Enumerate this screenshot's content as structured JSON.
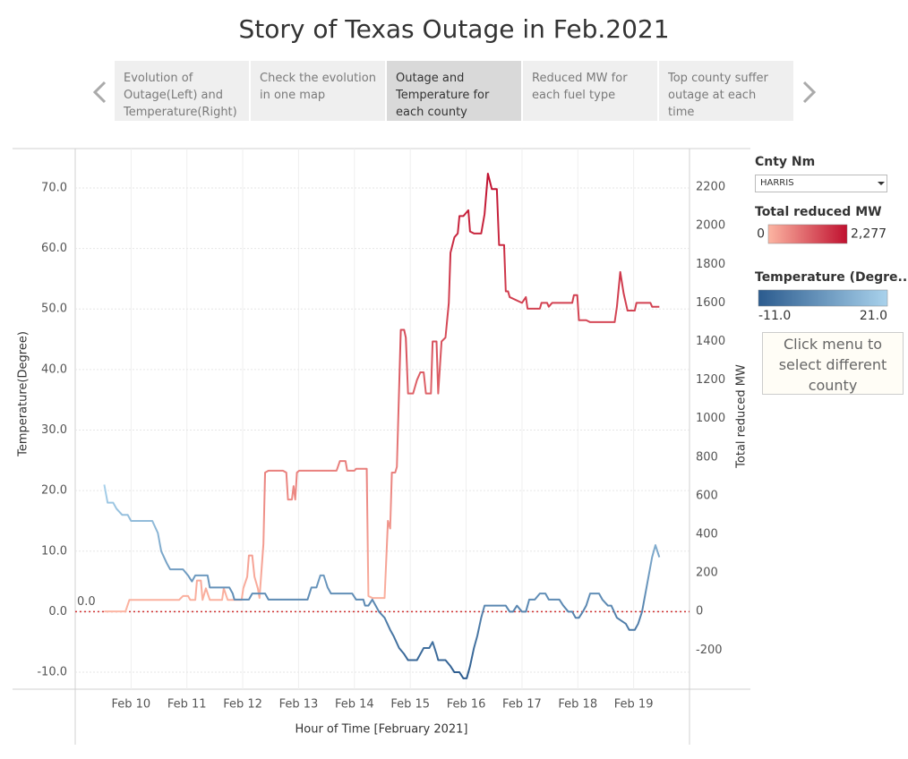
{
  "title": "Story of Texas Outage in Feb.2021",
  "story_points": [
    "Evolution of Outage(Left) and Temperature(Right)",
    "Check the evolution in one map",
    "Outage and Temperature for each county",
    "Reduced MW for each fuel type",
    "Top  county suffer outage at each time"
  ],
  "active_story_point": 2,
  "filter": {
    "label": "Cnty Nm",
    "value": "HARRIS"
  },
  "note": "Click menu to select different county",
  "chart_data": {
    "type": "line",
    "x_label": "Hour of Time [February 2021]",
    "y_label": "Temperature(Degree)",
    "y2_label": "Total reduced MW",
    "xlim": [
      9.0,
      20.0
    ],
    "xticks": [
      {
        "value": 10,
        "label": "Feb 10"
      },
      {
        "value": 11,
        "label": "Feb 11"
      },
      {
        "value": 12,
        "label": "Feb 12"
      },
      {
        "value": 13,
        "label": "Feb 13"
      },
      {
        "value": 14,
        "label": "Feb 14"
      },
      {
        "value": 15,
        "label": "Feb 15"
      },
      {
        "value": 16,
        "label": "Feb 16"
      },
      {
        "value": 17,
        "label": "Feb 17"
      },
      {
        "value": 18,
        "label": "Feb 18"
      },
      {
        "value": 19,
        "label": "Feb 19"
      }
    ],
    "ylim": [
      -12.8,
      76.5
    ],
    "yticks": [
      {
        "value": -10,
        "label": "-10.0"
      },
      {
        "value": 0,
        "label": "0.0"
      },
      {
        "value": 10,
        "label": "10.0"
      },
      {
        "value": 20,
        "label": "20.0"
      },
      {
        "value": 30,
        "label": "30.0"
      },
      {
        "value": 40,
        "label": "40.0"
      },
      {
        "value": 50,
        "label": "50.0"
      },
      {
        "value": 60,
        "label": "60.0"
      },
      {
        "value": 70,
        "label": "70.0"
      }
    ],
    "y2lim": [
      -403,
      2400
    ],
    "y2ticks": [
      -200,
      0,
      200,
      400,
      600,
      800,
      1000,
      1200,
      1400,
      1600,
      1800,
      2000,
      2200
    ],
    "grid": true,
    "reference_line": {
      "value": 0,
      "label": "0.0",
      "color": "#d03030"
    },
    "series": [
      {
        "name": "Total reduced MW",
        "axis": "y2",
        "color_scale": {
          "colors": [
            "#fcb5a2",
            "#c0102f"
          ],
          "ticks": [
            {
              "value": 0,
              "label": "0"
            },
            {
              "value": 2277,
              "label": "2,277"
            }
          ]
        },
        "x": [
          9.52,
          9.9,
          9.97,
          10.03,
          10.86,
          10.93,
          11.02,
          11.06,
          11.15,
          11.18,
          11.25,
          11.28,
          11.34,
          11.41,
          11.63,
          11.66,
          11.73,
          11.98,
          12.01,
          12.08,
          12.11,
          12.17,
          12.21,
          12.27,
          12.3,
          12.37,
          12.4,
          12.46,
          12.72,
          12.78,
          12.81,
          12.88,
          12.91,
          12.94,
          12.97,
          13.01,
          13.68,
          13.74,
          13.84,
          13.87,
          14.0,
          14.03,
          14.22,
          14.25,
          14.32,
          14.54,
          14.6,
          14.64,
          14.67,
          14.73,
          14.76,
          14.83,
          14.89,
          14.92,
          14.96,
          15.05,
          15.12,
          15.18,
          15.24,
          15.28,
          15.37,
          15.4,
          15.47,
          15.5,
          15.56,
          15.63,
          15.69,
          15.72,
          15.79,
          15.85,
          15.88,
          15.95,
          15.98,
          16.04,
          16.07,
          16.14,
          16.27,
          16.33,
          16.39,
          16.46,
          16.55,
          16.59,
          16.68,
          16.71,
          16.75,
          16.78,
          17.0,
          17.07,
          17.1,
          17.32,
          17.35,
          17.45,
          17.48,
          17.54,
          17.9,
          17.93,
          17.99,
          18.02,
          18.15,
          18.22,
          18.66,
          18.7,
          18.76,
          18.82,
          18.89,
          19.02,
          19.05,
          19.3,
          19.33,
          19.46
        ],
        "values": [
          0,
          0,
          60,
          60,
          60,
          80,
          80,
          60,
          60,
          160,
          160,
          60,
          120,
          60,
          60,
          120,
          60,
          60,
          120,
          180,
          290,
          290,
          180,
          120,
          70,
          350,
          720,
          730,
          730,
          720,
          580,
          580,
          650,
          580,
          720,
          730,
          730,
          780,
          780,
          730,
          730,
          740,
          740,
          80,
          70,
          70,
          470,
          430,
          720,
          720,
          750,
          1460,
          1460,
          1420,
          1130,
          1130,
          1200,
          1240,
          1240,
          1130,
          1130,
          1400,
          1400,
          1130,
          1400,
          1420,
          1600,
          1860,
          1940,
          1960,
          2050,
          2050,
          2060,
          2080,
          1970,
          1960,
          1960,
          2060,
          2270,
          2190,
          2190,
          1900,
          1900,
          1660,
          1660,
          1630,
          1600,
          1630,
          1570,
          1570,
          1600,
          1600,
          1580,
          1600,
          1600,
          1640,
          1640,
          1510,
          1510,
          1500,
          1500,
          1580,
          1760,
          1650,
          1560,
          1560,
          1600,
          1600,
          1580,
          1580
        ]
      },
      {
        "name": "Temperature (Degre..",
        "axis": "y",
        "color_scale": {
          "colors": [
            "#2b5b8e",
            "#a9d2ec"
          ],
          "ticks": [
            {
              "value": -11,
              "label": "-11.0"
            },
            {
              "value": 21,
              "label": "21.0"
            }
          ]
        },
        "x": [
          9.52,
          9.58,
          9.68,
          9.74,
          9.84,
          9.94,
          10.0,
          10.06,
          10.38,
          10.48,
          10.54,
          10.64,
          10.7,
          10.93,
          11.02,
          11.09,
          11.15,
          11.37,
          11.41,
          11.76,
          11.82,
          11.85,
          12.11,
          12.17,
          12.4,
          12.46,
          13.16,
          13.23,
          13.32,
          13.39,
          13.45,
          13.52,
          13.58,
          13.96,
          14.03,
          14.16,
          14.19,
          14.25,
          14.32,
          14.38,
          14.44,
          14.54,
          14.64,
          14.7,
          14.8,
          14.89,
          14.96,
          15.12,
          15.18,
          15.24,
          15.34,
          15.4,
          15.47,
          15.5,
          15.63,
          15.72,
          15.79,
          15.88,
          15.95,
          16.01,
          16.07,
          16.14,
          16.2,
          16.27,
          16.33,
          16.71,
          16.78,
          16.84,
          16.91,
          17.0,
          17.07,
          17.13,
          17.23,
          17.32,
          17.42,
          17.48,
          17.67,
          17.74,
          17.83,
          17.9,
          17.96,
          18.02,
          18.09,
          18.15,
          18.22,
          18.38,
          18.44,
          18.54,
          18.6,
          18.7,
          18.86,
          18.92,
          19.02,
          19.08,
          19.15,
          19.21,
          19.27,
          19.33,
          19.39,
          19.46
        ],
        "values": [
          21,
          18,
          18,
          17,
          16,
          16,
          15,
          15,
          15,
          13,
          10,
          8,
          7,
          7,
          6,
          5,
          6,
          6,
          4,
          4,
          3,
          2,
          2,
          3,
          3,
          2,
          2,
          4,
          4,
          6,
          6,
          4,
          3,
          3,
          2,
          2,
          1,
          1,
          2,
          1,
          0,
          -1,
          -3,
          -4,
          -6,
          -7,
          -8,
          -8,
          -7,
          -6,
          -6,
          -5,
          -7,
          -8,
          -8,
          -9,
          -10,
          -10,
          -11,
          -11,
          -9,
          -6,
          -4,
          -1,
          1,
          1,
          0,
          0,
          1,
          0,
          0,
          2,
          2,
          3,
          3,
          2,
          2,
          1,
          0,
          0,
          -1,
          -1,
          0,
          1,
          3,
          3,
          2,
          1,
          1,
          -1,
          -2,
          -3,
          -3,
          -2,
          0,
          3,
          6,
          9,
          11,
          9
        ]
      }
    ]
  }
}
